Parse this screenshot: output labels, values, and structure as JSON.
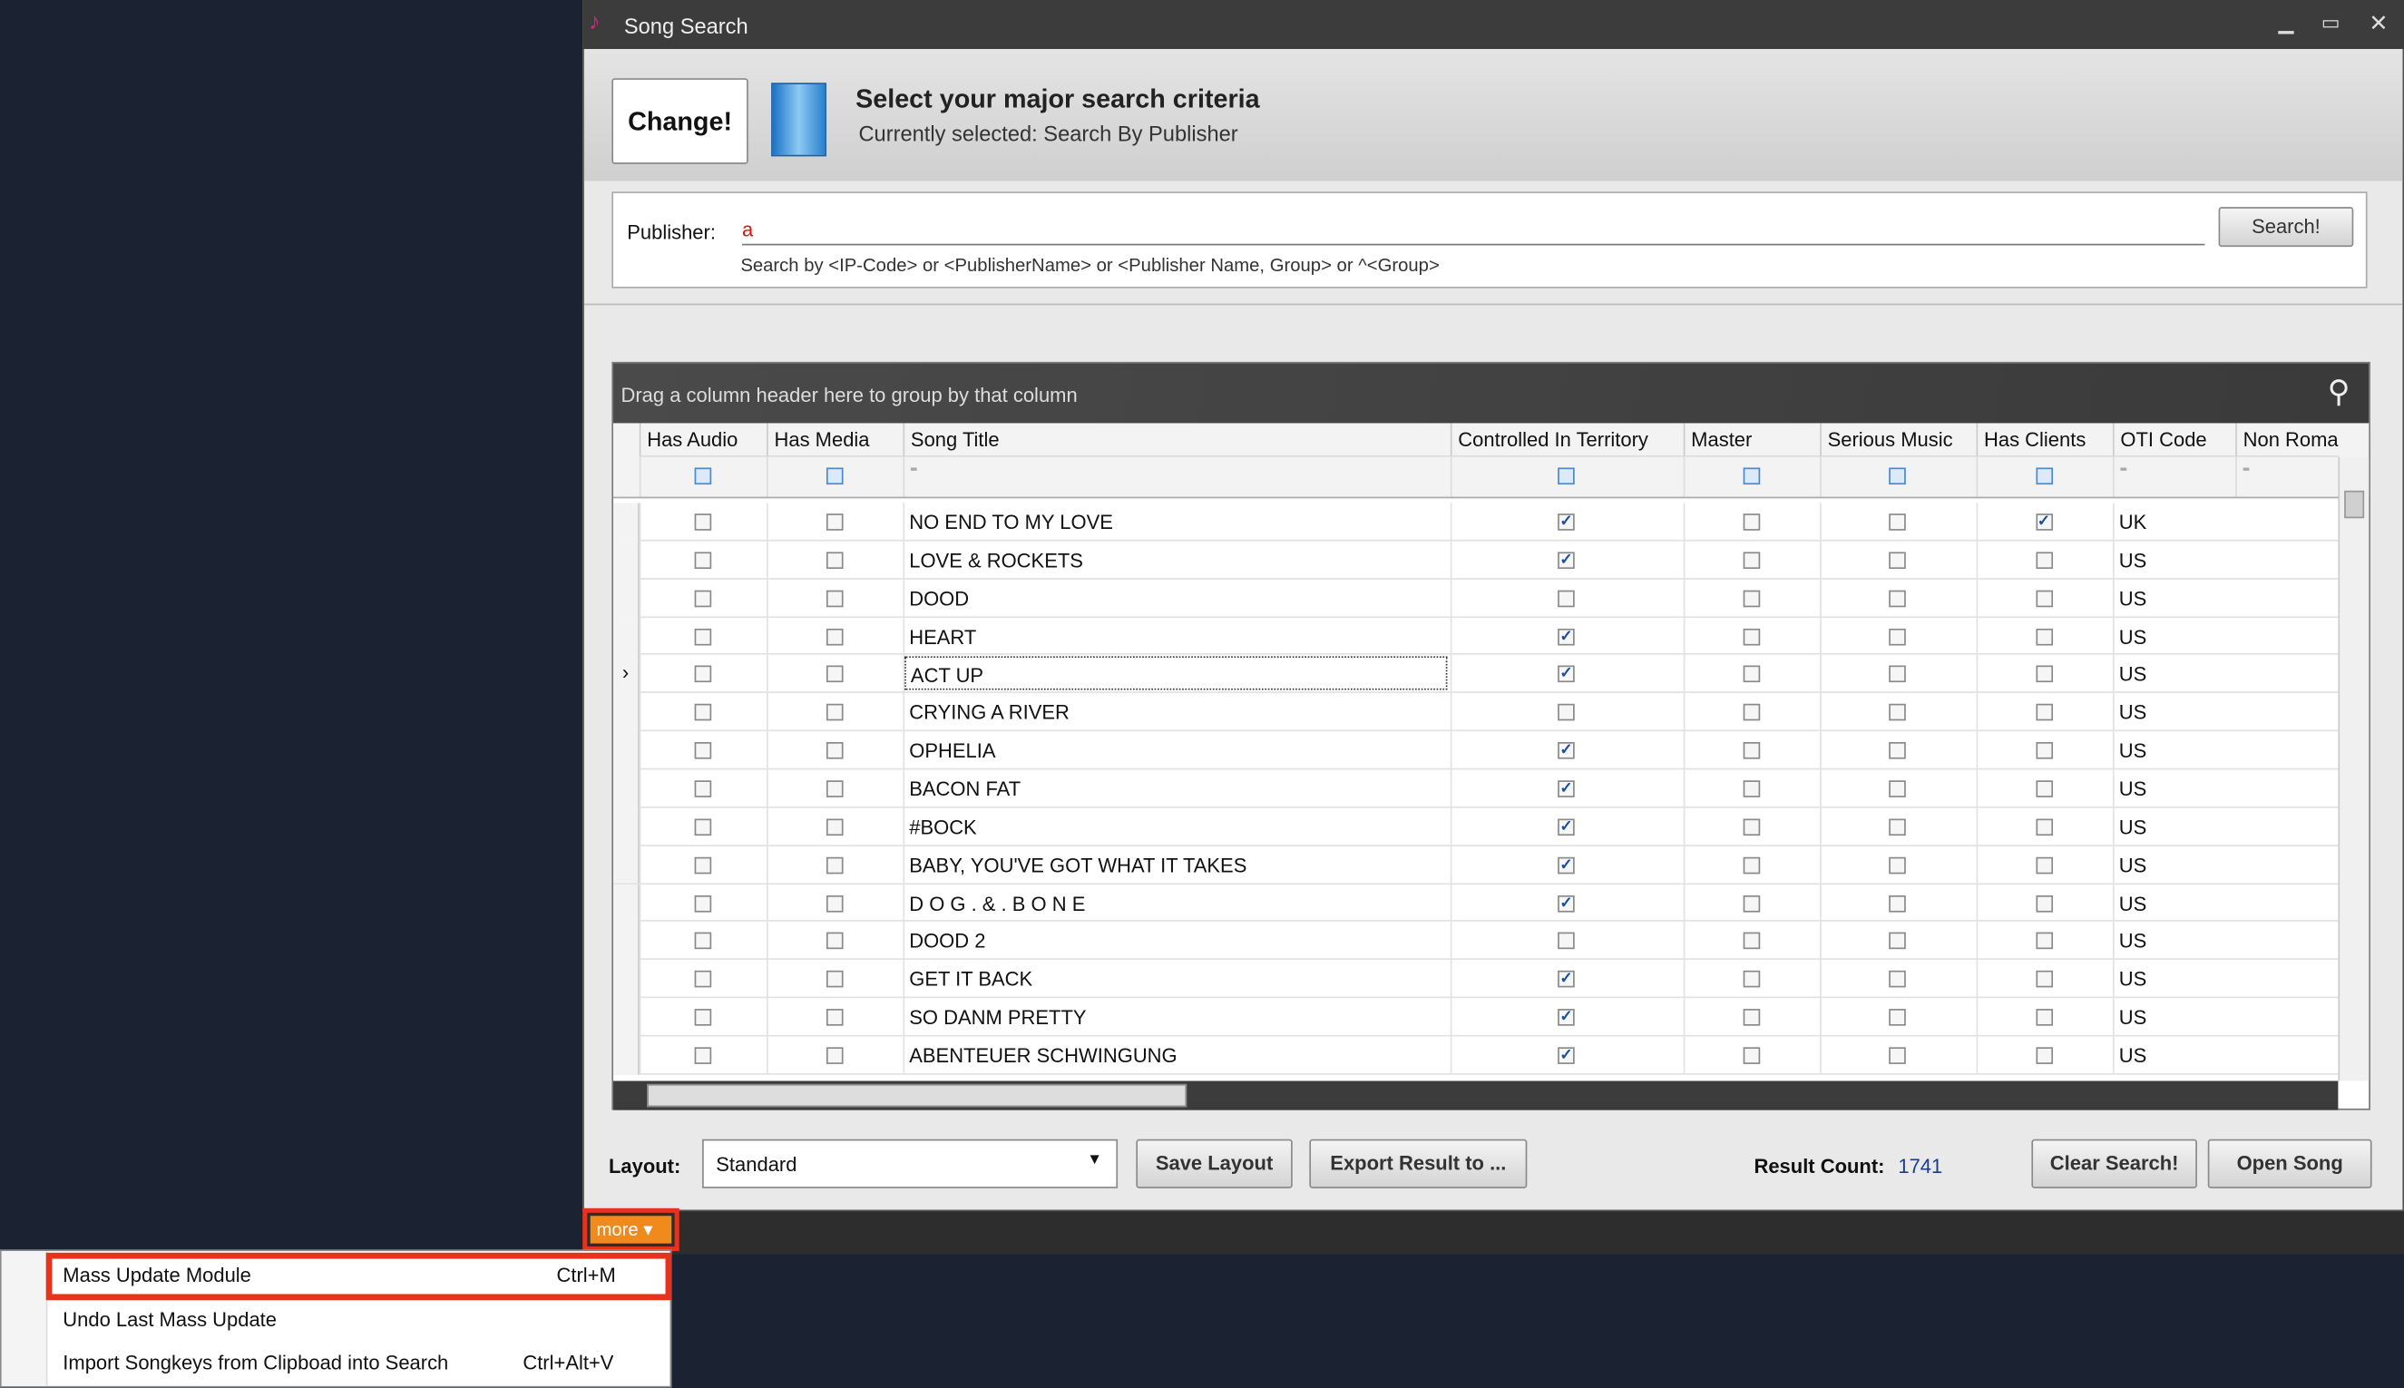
{
  "window": {
    "title": "Song Search"
  },
  "header": {
    "change_button": "Change!",
    "heading": "Select your major search criteria",
    "subheading": "Currently selected: Search By Publisher"
  },
  "search": {
    "label": "Publisher:",
    "value": "a",
    "hint": "Search by <IP-Code> or <PublisherName> or <Publisher Name, Group> or ^<Group>",
    "button": "Search!"
  },
  "grid": {
    "group_hint": "Drag a column header here to group by that column",
    "columns": [
      "Has Audio",
      "Has Media",
      "Song Title",
      "Controlled In Territory",
      "Master",
      "Serious Music",
      "Has Clients",
      "OTI Code",
      "Non Roman ..."
    ],
    "selected_row": 4,
    "rows": [
      {
        "has_audio": false,
        "has_media": false,
        "title": "NO END TO MY LOVE",
        "controlled": true,
        "master": false,
        "serious": false,
        "has_clients": true,
        "oti": "UK"
      },
      {
        "has_audio": false,
        "has_media": false,
        "title": "LOVE & ROCKETS",
        "controlled": true,
        "master": false,
        "serious": false,
        "has_clients": false,
        "oti": "US"
      },
      {
        "has_audio": false,
        "has_media": false,
        "title": "DOOD",
        "controlled": false,
        "master": false,
        "serious": false,
        "has_clients": false,
        "oti": "US"
      },
      {
        "has_audio": false,
        "has_media": false,
        "title": "HEART",
        "controlled": true,
        "master": false,
        "serious": false,
        "has_clients": false,
        "oti": "US"
      },
      {
        "has_audio": false,
        "has_media": false,
        "title": "ACT UP",
        "controlled": true,
        "master": false,
        "serious": false,
        "has_clients": false,
        "oti": "US"
      },
      {
        "has_audio": false,
        "has_media": false,
        "title": "CRYING A RIVER",
        "controlled": false,
        "master": false,
        "serious": false,
        "has_clients": false,
        "oti": "US"
      },
      {
        "has_audio": false,
        "has_media": false,
        "title": "OPHELIA",
        "controlled": true,
        "master": false,
        "serious": false,
        "has_clients": false,
        "oti": "US"
      },
      {
        "has_audio": false,
        "has_media": false,
        "title": "BACON FAT",
        "controlled": true,
        "master": false,
        "serious": false,
        "has_clients": false,
        "oti": "US"
      },
      {
        "has_audio": false,
        "has_media": false,
        "title": "#BOCK",
        "controlled": true,
        "master": false,
        "serious": false,
        "has_clients": false,
        "oti": "US"
      },
      {
        "has_audio": false,
        "has_media": false,
        "title": "BABY, YOU'VE GOT WHAT IT TAKES",
        "controlled": true,
        "master": false,
        "serious": false,
        "has_clients": false,
        "oti": "US"
      },
      {
        "has_audio": false,
        "has_media": false,
        "title": "D O G .  & .  B O N E",
        "controlled": true,
        "master": false,
        "serious": false,
        "has_clients": false,
        "oti": "US"
      },
      {
        "has_audio": false,
        "has_media": false,
        "title": "DOOD 2",
        "controlled": false,
        "master": false,
        "serious": false,
        "has_clients": false,
        "oti": "US"
      },
      {
        "has_audio": false,
        "has_media": false,
        "title": "GET IT BACK",
        "controlled": true,
        "master": false,
        "serious": false,
        "has_clients": false,
        "oti": "US"
      },
      {
        "has_audio": false,
        "has_media": false,
        "title": "SO DANM PRETTY",
        "controlled": true,
        "master": false,
        "serious": false,
        "has_clients": false,
        "oti": "US"
      },
      {
        "has_audio": false,
        "has_media": false,
        "title": "ABENTEUER SCHWINGUNG",
        "controlled": true,
        "master": false,
        "serious": false,
        "has_clients": false,
        "oti": "US"
      }
    ]
  },
  "footer": {
    "layout_label": "Layout:",
    "layout_value": "Standard",
    "save_layout": "Save Layout",
    "export": "Export Result to ...",
    "result_label": "Result Count:",
    "result_count": 1741,
    "clear": "Clear Search!",
    "open": "Open Song"
  },
  "more_button": "more",
  "menu": [
    {
      "label": "Mass Update Module",
      "shortcut": "Ctrl+M"
    },
    {
      "label": "Undo Last Mass Update"
    },
    {
      "label": "Import Songkeys from Clipboad into Search",
      "shortcut": "Ctrl+Alt+V"
    }
  ]
}
